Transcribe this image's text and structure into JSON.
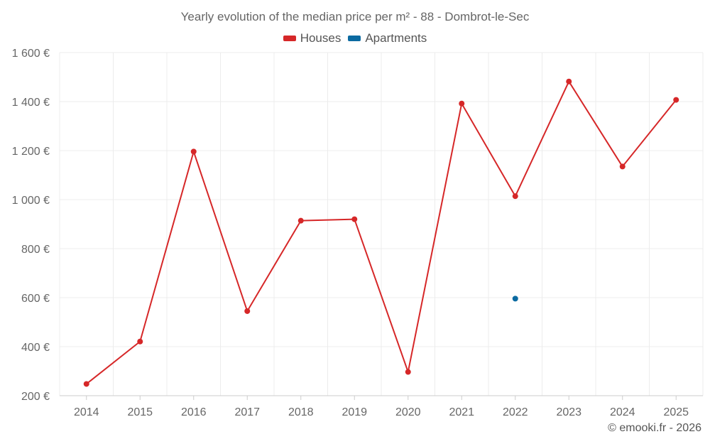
{
  "chart_data": {
    "type": "line",
    "title": "Yearly evolution of the median price per m² - 88 - Dombrot-le-Sec",
    "categories": [
      "2014",
      "2015",
      "2016",
      "2017",
      "2018",
      "2019",
      "2020",
      "2021",
      "2022",
      "2023",
      "2024",
      "2025"
    ],
    "series": [
      {
        "name": "Houses",
        "color": "#d62728",
        "values": [
          248,
          421,
          1196,
          545,
          914,
          920,
          297,
          1392,
          1014,
          1482,
          1135,
          1407
        ]
      },
      {
        "name": "Apartments",
        "color": "#0b6aa1",
        "values": [
          null,
          null,
          null,
          null,
          null,
          null,
          null,
          null,
          596,
          null,
          null,
          null
        ]
      }
    ],
    "ylim": [
      200,
      1600
    ],
    "yticks": [
      200,
      400,
      600,
      800,
      1000,
      1200,
      1400,
      1600
    ],
    "ytick_labels": [
      "200 €",
      "400 €",
      "600 €",
      "800 €",
      "1 000 €",
      "1 200 €",
      "1 400 €",
      "1 600 €"
    ],
    "xlabel": "",
    "ylabel": "",
    "grid": true,
    "legend_position": "top-center"
  },
  "copyright": "© emooki.fr - 2026"
}
